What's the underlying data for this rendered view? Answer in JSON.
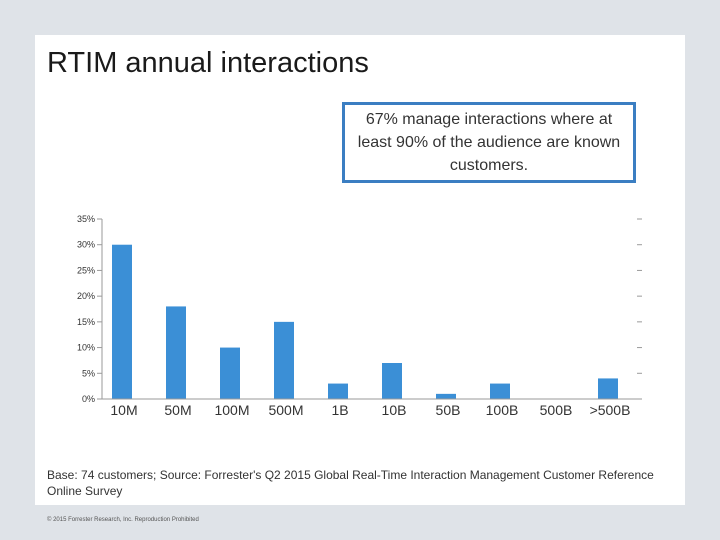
{
  "slide": {
    "title": "RTIM annual interactions",
    "callout": "67% manage interactions where at least 90% of the audience are known customers.",
    "base_note": "Base: 74 customers; Source: Forrester's Q2 2015 Global Real-Time Interaction Management Customer Reference Online Survey",
    "copyright": "© 2015 Forrester Research, Inc. Reproduction Prohibited"
  },
  "colors": {
    "bar": "#3b8fd6",
    "axis": "#9a9a9a",
    "callout_border": "#3b7ec2"
  },
  "chart_data": {
    "type": "bar",
    "title": "RTIM annual interactions",
    "xlabel": "",
    "ylabel": "",
    "categories": [
      "10M",
      "50M",
      "100M",
      "500M",
      "1B",
      "10B",
      "50B",
      "100B",
      "500B",
      ">500B"
    ],
    "values": [
      30,
      18,
      10,
      15,
      3,
      7,
      1,
      3,
      0,
      4
    ],
    "ylim": [
      0,
      35
    ],
    "yticks": [
      0,
      5,
      10,
      15,
      20,
      25,
      30,
      35
    ],
    "ytick_labels": [
      "0%",
      "5%",
      "10%",
      "15%",
      "20%",
      "25%",
      "30%",
      "35%"
    ],
    "grid": false,
    "legend": "none"
  }
}
